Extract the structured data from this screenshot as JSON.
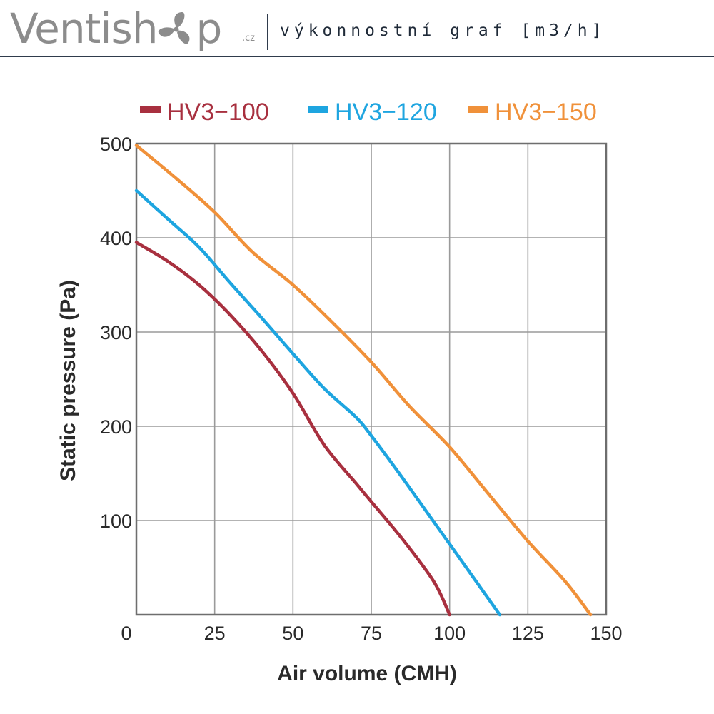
{
  "header": {
    "logo_text": "Ventish",
    "logo_text_end": "p",
    "logo_suffix": ".cz",
    "logo_icon": "fan-icon",
    "subtitle": "výkonnostní graf [m3/h]",
    "rule_color": "#2f3b4c"
  },
  "chart_data": {
    "type": "line",
    "xlabel": "Air volume (CMH)",
    "ylabel": "Static pressure (Pa)",
    "xlim": [
      0,
      150
    ],
    "ylim": [
      0,
      500
    ],
    "x_ticks": [
      "0",
      "25",
      "50",
      "75",
      "100",
      "125",
      "150"
    ],
    "y_ticks": [
      "",
      "100",
      "200",
      "300",
      "400",
      "500"
    ],
    "grid": true,
    "legend_position": "top",
    "series": [
      {
        "name": "HV3−100",
        "color": "#a8303f",
        "points": [
          [
            0,
            395
          ],
          [
            10,
            375
          ],
          [
            20,
            350
          ],
          [
            30,
            318
          ],
          [
            40,
            280
          ],
          [
            50,
            235
          ],
          [
            60,
            180
          ],
          [
            70,
            140
          ],
          [
            75,
            120
          ],
          [
            85,
            80
          ],
          [
            95,
            35
          ],
          [
            100,
            0
          ]
        ]
      },
      {
        "name": "HV3−120",
        "color": "#1ea5e0",
        "points": [
          [
            0,
            450
          ],
          [
            10,
            420
          ],
          [
            20,
            390
          ],
          [
            30,
            352
          ],
          [
            40,
            315
          ],
          [
            50,
            277
          ],
          [
            60,
            240
          ],
          [
            70,
            210
          ],
          [
            75,
            190
          ],
          [
            85,
            145
          ],
          [
            100,
            75
          ],
          [
            116,
            0
          ]
        ]
      },
      {
        "name": "HV3−150",
        "color": "#f0913a",
        "points": [
          [
            0,
            498
          ],
          [
            12,
            465
          ],
          [
            25,
            427
          ],
          [
            37,
            385
          ],
          [
            50,
            350
          ],
          [
            62,
            312
          ],
          [
            75,
            268
          ],
          [
            87,
            222
          ],
          [
            100,
            178
          ],
          [
            112,
            130
          ],
          [
            125,
            78
          ],
          [
            137,
            35
          ],
          [
            145,
            0
          ]
        ]
      }
    ]
  }
}
